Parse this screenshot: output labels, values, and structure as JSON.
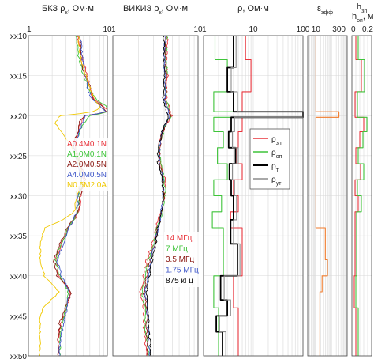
{
  "colors": {
    "red": "#e8343c",
    "green": "#3fc43a",
    "darkred": "#8b1a14",
    "blue": "#3f57c8",
    "yellow": "#f0c800",
    "black": "#000000",
    "gray": "#8c8c8c",
    "orange": "#f07a2a"
  },
  "chart_data": [
    {
      "type": "line",
      "panel": "bkz",
      "title_main": "БКЗ ρ",
      "title_sub": "к",
      "title_unit": ", Ом·м",
      "x_scale": "log",
      "xlim": [
        1,
        10
      ],
      "tick_labels": [
        "1",
        "10"
      ],
      "ylim_depth": [
        10,
        50
      ],
      "depth_labels": [
        "xx10",
        "xx15",
        "xx20",
        "xx25",
        "xx30",
        "xx35",
        "xx40",
        "xx45",
        "xx50"
      ],
      "legend": [
        "A0.4M0.1N",
        "A1.0M0.1N",
        "A2.0M0.5N",
        "A4.0M0.5N",
        "N0.5M2.0A"
      ],
      "series_colors": [
        "red",
        "green",
        "darkred",
        "blue",
        "yellow"
      ],
      "series": [
        {
          "name": "A0.4M0.1N",
          "depth": [
            10,
            13,
            15,
            17,
            18,
            19,
            19.5,
            20,
            21,
            22,
            24,
            26,
            28,
            30,
            32,
            34,
            36,
            38,
            40,
            42,
            44,
            46,
            48,
            50
          ],
          "values": [
            4.2,
            4.8,
            5.6,
            6.2,
            6.8,
            9.5,
            10,
            5.2,
            4.6,
            4.2,
            3.8,
            4.6,
            5,
            4.6,
            4.4,
            3.2,
            2.6,
            2.2,
            2.4,
            3.4,
            3,
            2.6,
            2.4,
            2.4
          ]
        },
        {
          "name": "A1.0M0.1N",
          "depth": [
            10,
            13,
            15,
            17,
            18,
            19,
            19.5,
            20,
            21,
            22,
            24,
            26,
            28,
            30,
            32,
            34,
            36,
            38,
            40,
            42,
            44,
            46,
            48,
            50
          ],
          "values": [
            4,
            4.4,
            5,
            6,
            7.4,
            10,
            10,
            6,
            5,
            4.4,
            4,
            4.4,
            4.8,
            4.4,
            4.2,
            3.2,
            2.6,
            2.2,
            2.5,
            3.2,
            3,
            2.7,
            2.5,
            2.5
          ]
        },
        {
          "name": "A2.0M0.5N",
          "depth": [
            10,
            13,
            15,
            17,
            18,
            19,
            19.5,
            20,
            21,
            22,
            24,
            26,
            28,
            30,
            32,
            34,
            36,
            38,
            40,
            42,
            44,
            46,
            48,
            50
          ],
          "values": [
            4.6,
            4.6,
            5.2,
            6.4,
            6.6,
            9,
            9.8,
            5,
            4.4,
            4.2,
            3.6,
            4.5,
            5.2,
            4.5,
            4.3,
            3.1,
            2.5,
            2.1,
            2.3,
            3.5,
            2.9,
            2.5,
            2.4,
            2.4
          ]
        },
        {
          "name": "A4.0M0.5N",
          "depth": [
            10,
            13,
            15,
            17,
            18,
            19,
            19.5,
            20,
            21,
            22,
            24,
            26,
            28,
            30,
            32,
            34,
            36,
            38,
            40,
            42,
            44,
            46,
            48,
            50
          ],
          "values": [
            4.5,
            4.9,
            5.3,
            5.8,
            6.4,
            8.4,
            9.4,
            5.4,
            4.8,
            4.4,
            3.7,
            4.2,
            4.7,
            4.3,
            4.1,
            3.3,
            2.8,
            2.3,
            2.6,
            3.3,
            3.1,
            2.8,
            2.5,
            2.5
          ]
        },
        {
          "name": "N0.5M2.0A",
          "depth": [
            10,
            13,
            15,
            17,
            18,
            19,
            19.5,
            20,
            21,
            22,
            24,
            26,
            28,
            30,
            32,
            34,
            36,
            38,
            40,
            42,
            44,
            46,
            48,
            50
          ],
          "values": [
            4.3,
            4.6,
            5.4,
            6.2,
            7,
            8,
            6.5,
            2.5,
            2.2,
            2.6,
            3.6,
            4.4,
            4.6,
            4.2,
            3.8,
            1.6,
            1.4,
            1.4,
            1.6,
            2.4,
            1.5,
            1.4,
            1.4,
            1.4
          ]
        }
      ]
    },
    {
      "type": "line",
      "panel": "vikiz",
      "title_main": "ВИКИЗ ρ",
      "title_sub": "к",
      "title_unit": ", Ом·м",
      "x_scale": "log",
      "xlim": [
        1,
        10
      ],
      "tick_labels": [
        "1",
        "10"
      ],
      "legend": [
        "14 МГц",
        "7 МГц",
        "3.5 МГц",
        "1.75 МГц",
        "875 кГц"
      ],
      "series_colors": [
        "red",
        "green",
        "darkred",
        "blue",
        "black"
      ],
      "series": [
        {
          "name": "14 МГц",
          "depth": [
            10,
            13,
            15,
            17,
            18,
            19,
            20,
            21,
            22,
            24,
            26,
            28,
            30,
            32,
            34,
            36,
            38,
            40,
            42,
            44,
            46,
            48,
            50
          ],
          "values": [
            4.4,
            4.2,
            4.4,
            4.3,
            4.2,
            4.6,
            4.9,
            4.3,
            3.8,
            3.4,
            3.6,
            4.1,
            4.1,
            3.7,
            3.2,
            2.9,
            2.5,
            2.3,
            2.1,
            2.3,
            2.3,
            2.4,
            2.5
          ]
        },
        {
          "name": "7 МГц",
          "depth": [
            10,
            13,
            15,
            17,
            18,
            19,
            20,
            21,
            22,
            24,
            26,
            28,
            30,
            32,
            34,
            36,
            38,
            40,
            42,
            44,
            46,
            48,
            50
          ],
          "values": [
            4.3,
            4.2,
            4.3,
            4.2,
            4.2,
            4.5,
            4.8,
            4.3,
            3.9,
            3.5,
            3.6,
            4,
            4.1,
            3.8,
            3.3,
            3,
            2.6,
            2.4,
            2.2,
            2.4,
            2.4,
            2.5,
            2.6
          ]
        },
        {
          "name": "3.5 МГц",
          "depth": [
            10,
            13,
            15,
            17,
            18,
            19,
            20,
            21,
            22,
            24,
            26,
            28,
            30,
            32,
            34,
            36,
            38,
            40,
            42,
            44,
            46,
            48,
            50
          ],
          "values": [
            4.2,
            4.1,
            4.2,
            4.2,
            4.1,
            4.4,
            4.7,
            4.2,
            3.9,
            3.5,
            3.5,
            3.9,
            4,
            3.8,
            3.4,
            3.1,
            2.7,
            2.5,
            2.3,
            2.5,
            2.5,
            2.5,
            2.6
          ]
        },
        {
          "name": "1.75 МГц",
          "depth": [
            10,
            13,
            15,
            17,
            18,
            19,
            20,
            21,
            22,
            24,
            26,
            28,
            30,
            32,
            34,
            36,
            38,
            40,
            42,
            44,
            46,
            48,
            50
          ],
          "values": [
            4.1,
            4,
            4.1,
            4.1,
            4,
            4.3,
            4.6,
            4.2,
            3.8,
            3.5,
            3.5,
            3.9,
            3.9,
            3.7,
            3.4,
            3.1,
            2.8,
            2.6,
            2.4,
            2.5,
            2.6,
            2.6,
            2.7
          ]
        },
        {
          "name": "875 кГц",
          "depth": [
            10,
            13,
            15,
            17,
            18,
            19,
            20,
            21,
            22,
            24,
            26,
            28,
            30,
            32,
            34,
            36,
            38,
            40,
            42,
            44,
            46,
            48,
            50
          ],
          "values": [
            4,
            3.9,
            4,
            4,
            3.9,
            4.2,
            4.5,
            4.1,
            3.8,
            3.4,
            3.4,
            3.8,
            3.9,
            3.7,
            3.4,
            3.2,
            2.9,
            2.7,
            2.5,
            2.6,
            2.6,
            2.7,
            2.8
          ]
        }
      ]
    },
    {
      "type": "line",
      "panel": "rho",
      "title_main": "ρ, Ом·м",
      "x_scale": "log",
      "xlim": [
        1,
        100
      ],
      "tick_labels": [
        "1",
        "10",
        "100"
      ],
      "legend_sym": "ρ",
      "legend_subs": [
        "зп",
        "оп",
        "т",
        "ут"
      ],
      "series_colors": [
        "red",
        "green",
        "black",
        "gray"
      ],
      "series": [
        {
          "name": "ρзп",
          "depth": [
            10,
            13,
            13,
            17,
            17,
            19.5,
            19.5,
            20.2,
            20.2,
            22,
            22,
            24,
            24,
            26,
            26,
            28,
            28,
            30,
            30,
            32,
            32,
            34,
            34,
            40,
            40,
            44,
            44,
            50
          ],
          "values": [
            7,
            7,
            9,
            9,
            6,
            6,
            100,
            100,
            6,
            6,
            5,
            5,
            4.5,
            4.5,
            6,
            6,
            4,
            4,
            5,
            5,
            3.5,
            3.5,
            6,
            6,
            4,
            4,
            5,
            5
          ]
        },
        {
          "name": "ρоп",
          "depth": [
            10,
            13,
            13,
            17,
            17,
            19.5,
            19.5,
            20.2,
            20.2,
            22,
            22,
            24,
            24,
            26,
            26,
            28,
            28,
            30,
            30,
            32,
            32,
            34,
            34,
            40,
            40,
            44,
            44,
            50
          ],
          "values": [
            1.7,
            1.7,
            3,
            3,
            1.6,
            1.6,
            100,
            100,
            1.6,
            1.6,
            2.5,
            2.5,
            1.9,
            1.9,
            3,
            3,
            1.6,
            1.6,
            2.3,
            2.3,
            1.5,
            1.5,
            2.5,
            2.5,
            1.6,
            1.6,
            2,
            2
          ]
        },
        {
          "name": "ρт",
          "depth": [
            10,
            14,
            14,
            17,
            17,
            19.5,
            19.5,
            20.2,
            20.2,
            22,
            22,
            24,
            24,
            26,
            26,
            28,
            28,
            30,
            30,
            33,
            33,
            36,
            36,
            40,
            40,
            43,
            43,
            45,
            45,
            47,
            47,
            50
          ],
          "values": [
            4,
            4,
            3,
            3,
            4,
            4,
            100,
            100,
            3.6,
            3.6,
            3.2,
            3.2,
            4.4,
            4.4,
            3.3,
            3.3,
            3.6,
            3.6,
            4,
            4,
            3.5,
            3.5,
            4.8,
            4.8,
            2.2,
            2.2,
            3,
            3,
            1.8,
            1.8,
            2.4,
            2.4
          ]
        },
        {
          "name": "ρут",
          "depth": [
            10,
            14,
            14,
            17,
            17,
            19.5,
            19.5,
            20.2,
            20.2,
            22,
            22,
            24,
            24,
            26,
            26,
            28,
            28,
            30,
            30,
            33,
            33,
            36,
            36,
            40,
            40,
            43,
            43,
            45,
            45,
            47,
            47,
            50
          ],
          "values": [
            4.5,
            4.5,
            3.6,
            3.6,
            4.8,
            4.8,
            100,
            100,
            4.2,
            4.2,
            3.8,
            3.8,
            5,
            5,
            3.8,
            3.8,
            4.2,
            4.2,
            4.6,
            4.6,
            4,
            4,
            5.4,
            5.4,
            2.6,
            2.6,
            3.5,
            3.5,
            2.1,
            2.1,
            2.8,
            2.8
          ]
        }
      ]
    },
    {
      "type": "line",
      "panel": "eps",
      "title_main": "ε",
      "title_sub": "эфф",
      "x_scale": "log",
      "xlim": [
        3,
        1000
      ],
      "tick_labels": [
        "10",
        "300"
      ],
      "series_colors": [
        "orange"
      ],
      "series": [
        {
          "name": "εэфф",
          "depth": [
            10,
            19.5,
            19.5,
            20.2,
            20.2,
            34,
            34,
            38,
            38,
            40,
            40,
            42,
            42,
            50
          ],
          "values": [
            10,
            10,
            300,
            300,
            10,
            10,
            40,
            40,
            55,
            55,
            25,
            25,
            18,
            18
          ]
        }
      ]
    },
    {
      "type": "line",
      "panel": "h",
      "title_main": "h",
      "title_sub_a": "зп",
      "title_sub_b": "оп",
      "title_unit": ", м",
      "x_scale": "linear",
      "xlim": [
        0,
        0.25
      ],
      "tick_labels": [
        "0",
        "0.2"
      ],
      "series_colors": [
        "red",
        "green"
      ],
      "series": [
        {
          "name": "hзп",
          "depth": [
            10,
            13,
            13,
            17,
            17,
            20.2,
            20.2,
            22,
            22,
            24,
            24,
            26,
            26,
            28,
            28,
            30,
            30,
            32,
            32,
            40,
            40,
            44,
            44,
            50
          ],
          "values": [
            0.05,
            0.05,
            0.12,
            0.12,
            0.04,
            0.04,
            0.15,
            0.15,
            0.1,
            0.1,
            0.05,
            0.05,
            0.11,
            0.11,
            0.04,
            0.04,
            0.08,
            0.08,
            0.04,
            0.04,
            0.03,
            0.03,
            0.05,
            0.05
          ]
        },
        {
          "name": "hоп",
          "depth": [
            10,
            13,
            13,
            17,
            17,
            20.2,
            20.2,
            22,
            22,
            24,
            24,
            26,
            26,
            28,
            28,
            30,
            30,
            32,
            32,
            40,
            40,
            44,
            44,
            50
          ],
          "values": [
            0.08,
            0.08,
            0.16,
            0.16,
            0.07,
            0.07,
            0.19,
            0.19,
            0.14,
            0.14,
            0.08,
            0.08,
            0.15,
            0.15,
            0.07,
            0.07,
            0.12,
            0.12,
            0.06,
            0.06,
            0.05,
            0.05,
            0.08,
            0.08
          ]
        }
      ]
    }
  ]
}
